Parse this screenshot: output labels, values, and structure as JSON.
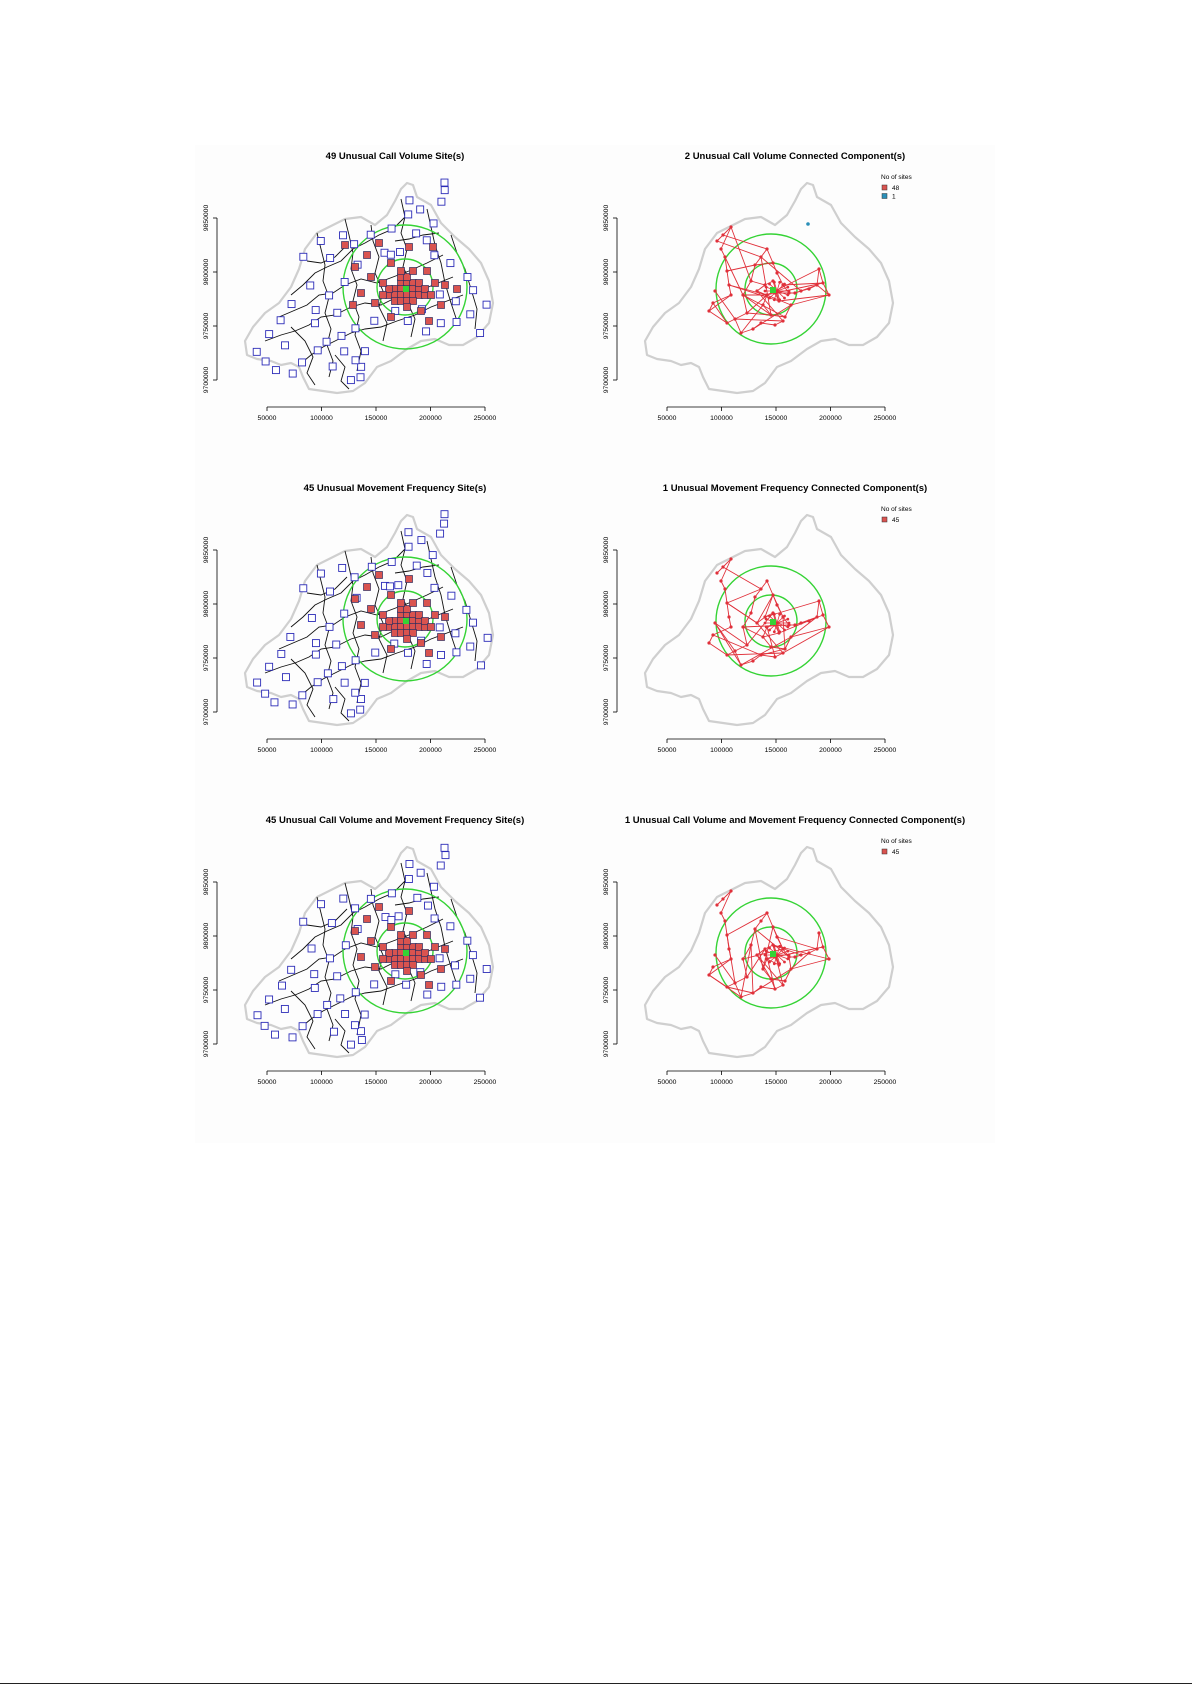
{
  "colors": {
    "site_fill": "#d9534f",
    "site_stroke": "#303060",
    "normal_site_stroke": "#2d2db8",
    "boundary": "#111111",
    "outline": "#cfcfcf",
    "circle": "#35d335",
    "network": "#e0303a",
    "center": "#35d335",
    "legend_red": "#d9534f",
    "legend_blue": "#2a8fb8"
  },
  "chart_data": [
    {
      "type": "scatter",
      "title": "49 Unusual Call Volume Site(s)",
      "xticks": [
        "50000",
        "100000",
        "150000",
        "200000",
        "250000"
      ],
      "yticks": [
        "9700000",
        "9750000",
        "9800000",
        "9850000"
      ],
      "xlim": [
        50000,
        250000
      ],
      "ylim": [
        9700000,
        9850000
      ],
      "unusual_sites": 49,
      "legend": null
    },
    {
      "type": "scatter",
      "title": "2 Unusual Call Volume Connected Component(s)",
      "xticks": [
        "50000",
        "100000",
        "150000",
        "200000",
        "250000"
      ],
      "yticks": [
        "9700000",
        "9750000",
        "9800000",
        "9850000"
      ],
      "xlim": [
        50000,
        250000
      ],
      "ylim": [
        9700000,
        9850000
      ],
      "legend": {
        "title": "No of sites",
        "entries": [
          {
            "label": "48",
            "color": "#d9534f"
          },
          {
            "label": "1",
            "color": "#2a8fb8"
          }
        ]
      }
    },
    {
      "type": "scatter",
      "title": "45 Unusual Movement Frequency Site(s)",
      "xticks": [
        "50000",
        "100000",
        "150000",
        "200000",
        "250000"
      ],
      "yticks": [
        "9700000",
        "9750000",
        "9800000",
        "9850000"
      ],
      "xlim": [
        50000,
        250000
      ],
      "ylim": [
        9700000,
        9850000
      ],
      "unusual_sites": 45,
      "legend": null
    },
    {
      "type": "scatter",
      "title": "1 Unusual Movement Frequency Connected Component(s)",
      "xticks": [
        "50000",
        "100000",
        "150000",
        "200000",
        "250000"
      ],
      "yticks": [
        "9700000",
        "9750000",
        "9800000",
        "9850000"
      ],
      "xlim": [
        50000,
        250000
      ],
      "ylim": [
        9700000,
        9850000
      ],
      "legend": {
        "title": "No of sites",
        "entries": [
          {
            "label": "45",
            "color": "#d9534f"
          }
        ]
      }
    },
    {
      "type": "scatter",
      "title": "45 Unusual Call Volume and Movement Frequency Site(s)",
      "xticks": [
        "50000",
        "100000",
        "150000",
        "200000",
        "250000"
      ],
      "yticks": [
        "9700000",
        "9750000",
        "9800000",
        "9850000"
      ],
      "xlim": [
        50000,
        250000
      ],
      "ylim": [
        9700000,
        9850000
      ],
      "unusual_sites": 45,
      "legend": null
    },
    {
      "type": "scatter",
      "title": "1 Unusual Call Volume and Movement Frequency Connected Component(s)",
      "xticks": [
        "50000",
        "100000",
        "150000",
        "200000",
        "250000"
      ],
      "yticks": [
        "9700000",
        "9750000",
        "9800000",
        "9850000"
      ],
      "xlim": [
        50000,
        250000
      ],
      "ylim": [
        9700000,
        9850000
      ],
      "legend": {
        "title": "No of sites",
        "entries": [
          {
            "label": "45",
            "color": "#d9534f"
          }
        ]
      }
    }
  ]
}
